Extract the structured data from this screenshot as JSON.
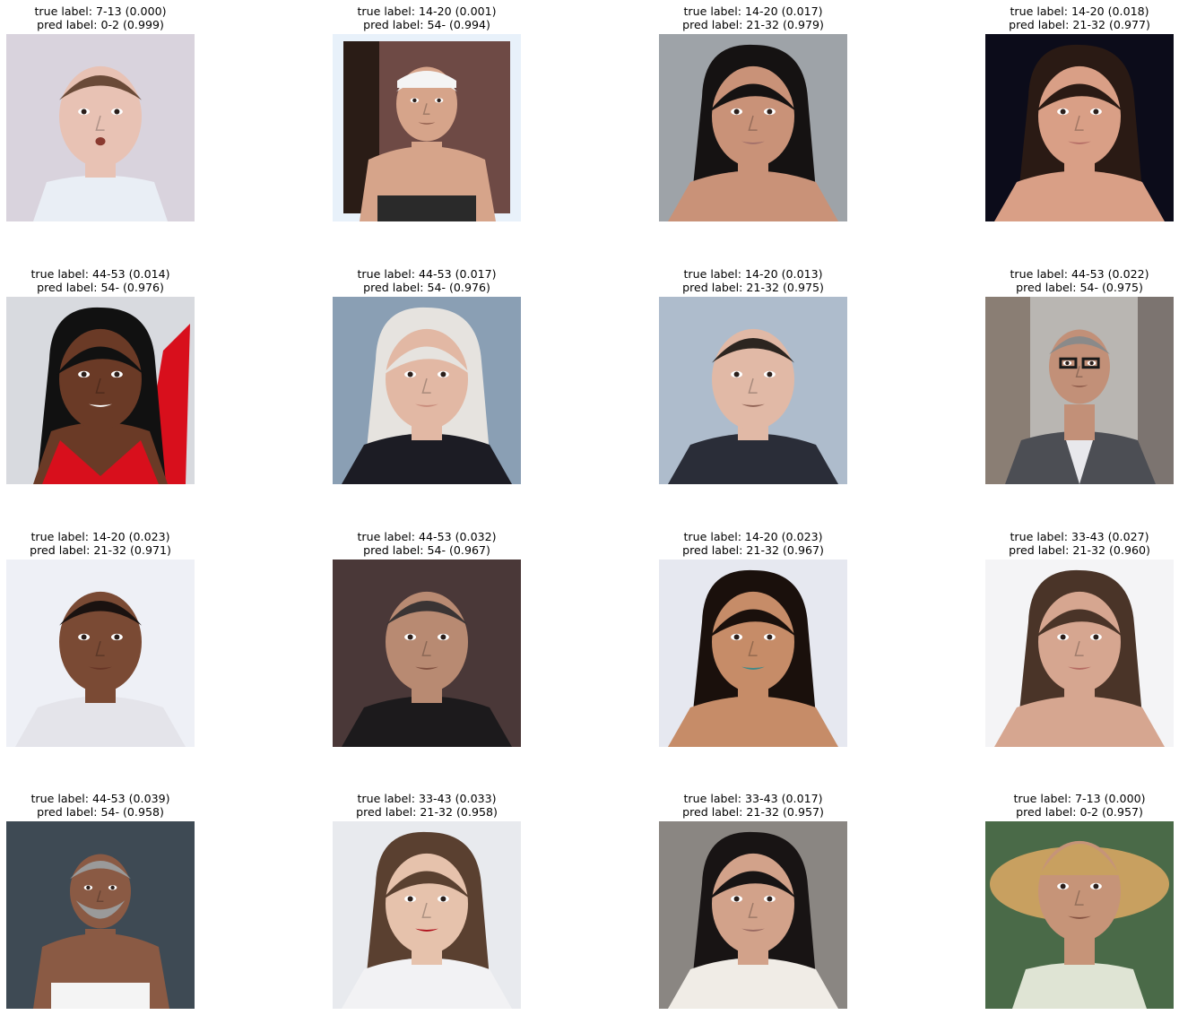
{
  "figure": {
    "panels": [
      {
        "true_label": "true label: 7-13 (0.000)",
        "pred_label": "pred label: 0-2 (0.999)",
        "subject": "baby",
        "bg": "#d9d3dd",
        "skin": "#e8c2b4",
        "hair": "#6a4a38",
        "cloth": "#e9eef5",
        "accent": "#8ab4e0"
      },
      {
        "true_label": "true label: 14-20 (0.001)",
        "pred_label": "pred label: 54- (0.994)",
        "subject": "shirtless-man-polaroid",
        "bg": "#6e4a45",
        "skin": "#d6a48a",
        "hair": "#f2f2f2",
        "cloth": "#2a2a2a",
        "accent": "#e8f1fa"
      },
      {
        "true_label": "true label: 14-20 (0.017)",
        "pred_label": "pred label: 21-32 (0.979)",
        "subject": "woman-dark-hair",
        "bg": "#9ea3a8",
        "skin": "#c99278",
        "hair": "#151212",
        "cloth": "#c99278",
        "accent": "#a2706a"
      },
      {
        "true_label": "true label: 14-20 (0.018)",
        "pred_label": "pred label: 21-32 (0.977)",
        "subject": "woman-dark-hair",
        "bg": "#0c0c1a",
        "skin": "#d99f86",
        "hair": "#2a1a14",
        "cloth": "#d99f86",
        "accent": "#b56e66"
      },
      {
        "true_label": "true label: 44-53 (0.014)",
        "pred_label": "pred label: 54- (0.976)",
        "subject": "woman-red-dress",
        "bg": "#d8dadf",
        "skin": "#6a3a26",
        "hair": "#111111",
        "cloth": "#d80f1c",
        "accent": "#ffffff"
      },
      {
        "true_label": "true label: 44-53 (0.017)",
        "pred_label": "pred label: 54- (0.976)",
        "subject": "woman-blonde",
        "bg": "#8a9fb4",
        "skin": "#e2b8a4",
        "hair": "#e6e3df",
        "cloth": "#1c1c24",
        "accent": "#c88c7c"
      },
      {
        "true_label": "true label: 14-20 (0.013)",
        "pred_label": "pred label: 21-32 (0.975)",
        "subject": "young-man",
        "bg": "#aebccc",
        "skin": "#e1b9a6",
        "hair": "#2c2520",
        "cloth": "#2a2d38",
        "accent": "#5a8aa8"
      },
      {
        "true_label": "true label: 44-53 (0.022)",
        "pred_label": "pred label: 54- (0.975)",
        "subject": "man-suit-glasses",
        "bg": "#b9b6b2",
        "skin": "#c29078",
        "hair": "#8a8a8a",
        "cloth": "#4c4e54",
        "accent": "#1a1a1a"
      },
      {
        "true_label": "true label: 14-20 (0.023)",
        "pred_label": "pred label: 21-32 (0.971)",
        "subject": "young-man",
        "bg": "#eef0f6",
        "skin": "#7a4a34",
        "hair": "#1a1210",
        "cloth": "#e4e4ea",
        "accent": "#3a2218"
      },
      {
        "true_label": "true label: 44-53 (0.032)",
        "pred_label": "pred label: 54- (0.967)",
        "subject": "older-man",
        "bg": "#4a3838",
        "skin": "#b88a72",
        "hair": "#3a3434",
        "cloth": "#1c1a1c",
        "accent": "#8aa0b8"
      },
      {
        "true_label": "true label: 14-20 (0.023)",
        "pred_label": "pred label: 21-32 (0.967)",
        "subject": "woman-dark-hair",
        "bg": "#e6e8f0",
        "skin": "#c68c68",
        "hair": "#1a100c",
        "cloth": "#c68c68",
        "accent": "#3a8a8a"
      },
      {
        "true_label": "true label: 33-43 (0.027)",
        "pred_label": "pred label: 21-32 (0.960)",
        "subject": "woman-brown-hair",
        "bg": "#f4f4f6",
        "skin": "#d6a690",
        "hair": "#4a3428",
        "cloth": "#d6a690",
        "accent": "#b46a62"
      },
      {
        "true_label": "true label: 44-53 (0.039)",
        "pred_label": "pred label: 54- (0.958)",
        "subject": "shirtless-older-man",
        "bg": "#3e4a54",
        "skin": "#8a5a44",
        "hair": "#9a9a9a",
        "cloth": "#f4f4f4",
        "accent": "#2a1c18"
      },
      {
        "true_label": "true label: 33-43 (0.033)",
        "pred_label": "pred label: 21-32 (0.958)",
        "subject": "woman-red-lips",
        "bg": "#e8eaee",
        "skin": "#e6c2ac",
        "hair": "#5a4030",
        "cloth": "#f2f2f4",
        "accent": "#b0101c"
      },
      {
        "true_label": "true label: 33-43 (0.017)",
        "pred_label": "pred label: 21-32 (0.957)",
        "subject": "woman-dark-hair",
        "bg": "#8a8682",
        "skin": "#d2a28a",
        "hair": "#181414",
        "cloth": "#f0ece6",
        "accent": "#9a6a62"
      },
      {
        "true_label": "true label: 7-13 (0.000)",
        "pred_label": "pred label: 0-2 (0.957)",
        "subject": "child-sombrero",
        "bg": "#4a6a48",
        "skin": "#c69478",
        "hair": "#3a2418",
        "cloth": "#dfe4d4",
        "accent": "#c8a060"
      }
    ]
  }
}
